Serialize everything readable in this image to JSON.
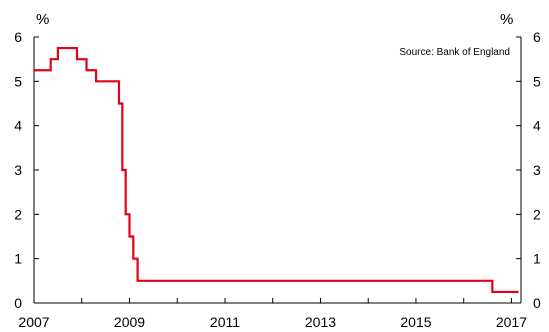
{
  "chart_data": {
    "type": "line",
    "left_unit": "%",
    "right_unit": "%",
    "annotation": "Source: Bank of England",
    "x_tick_labels": [
      "2007",
      "2009",
      "2011",
      "2013",
      "2015",
      "2017"
    ],
    "x_ticks": [
      2007,
      2009,
      2011,
      2013,
      2015,
      2017
    ],
    "y_tick_labels": [
      "0",
      "1",
      "2",
      "3",
      "4",
      "5",
      "6"
    ],
    "y_ticks": [
      0,
      1,
      2,
      3,
      4,
      5,
      6
    ],
    "xlim": [
      2007,
      2017.2
    ],
    "ylim": [
      0,
      6
    ],
    "grid": false,
    "line_color": "#e3001b",
    "step": true,
    "series": [
      {
        "x": [
          2007.0,
          2007.35,
          2007.5,
          2007.9,
          2008.1,
          2008.3,
          2008.78,
          2008.85,
          2008.92,
          2009.0,
          2009.08,
          2009.17,
          2016.6,
          2017.15
        ],
        "values": [
          5.25,
          5.5,
          5.75,
          5.5,
          5.25,
          5.0,
          4.5,
          3.0,
          2.0,
          1.5,
          1.0,
          0.5,
          0.25,
          0.25
        ]
      }
    ]
  }
}
